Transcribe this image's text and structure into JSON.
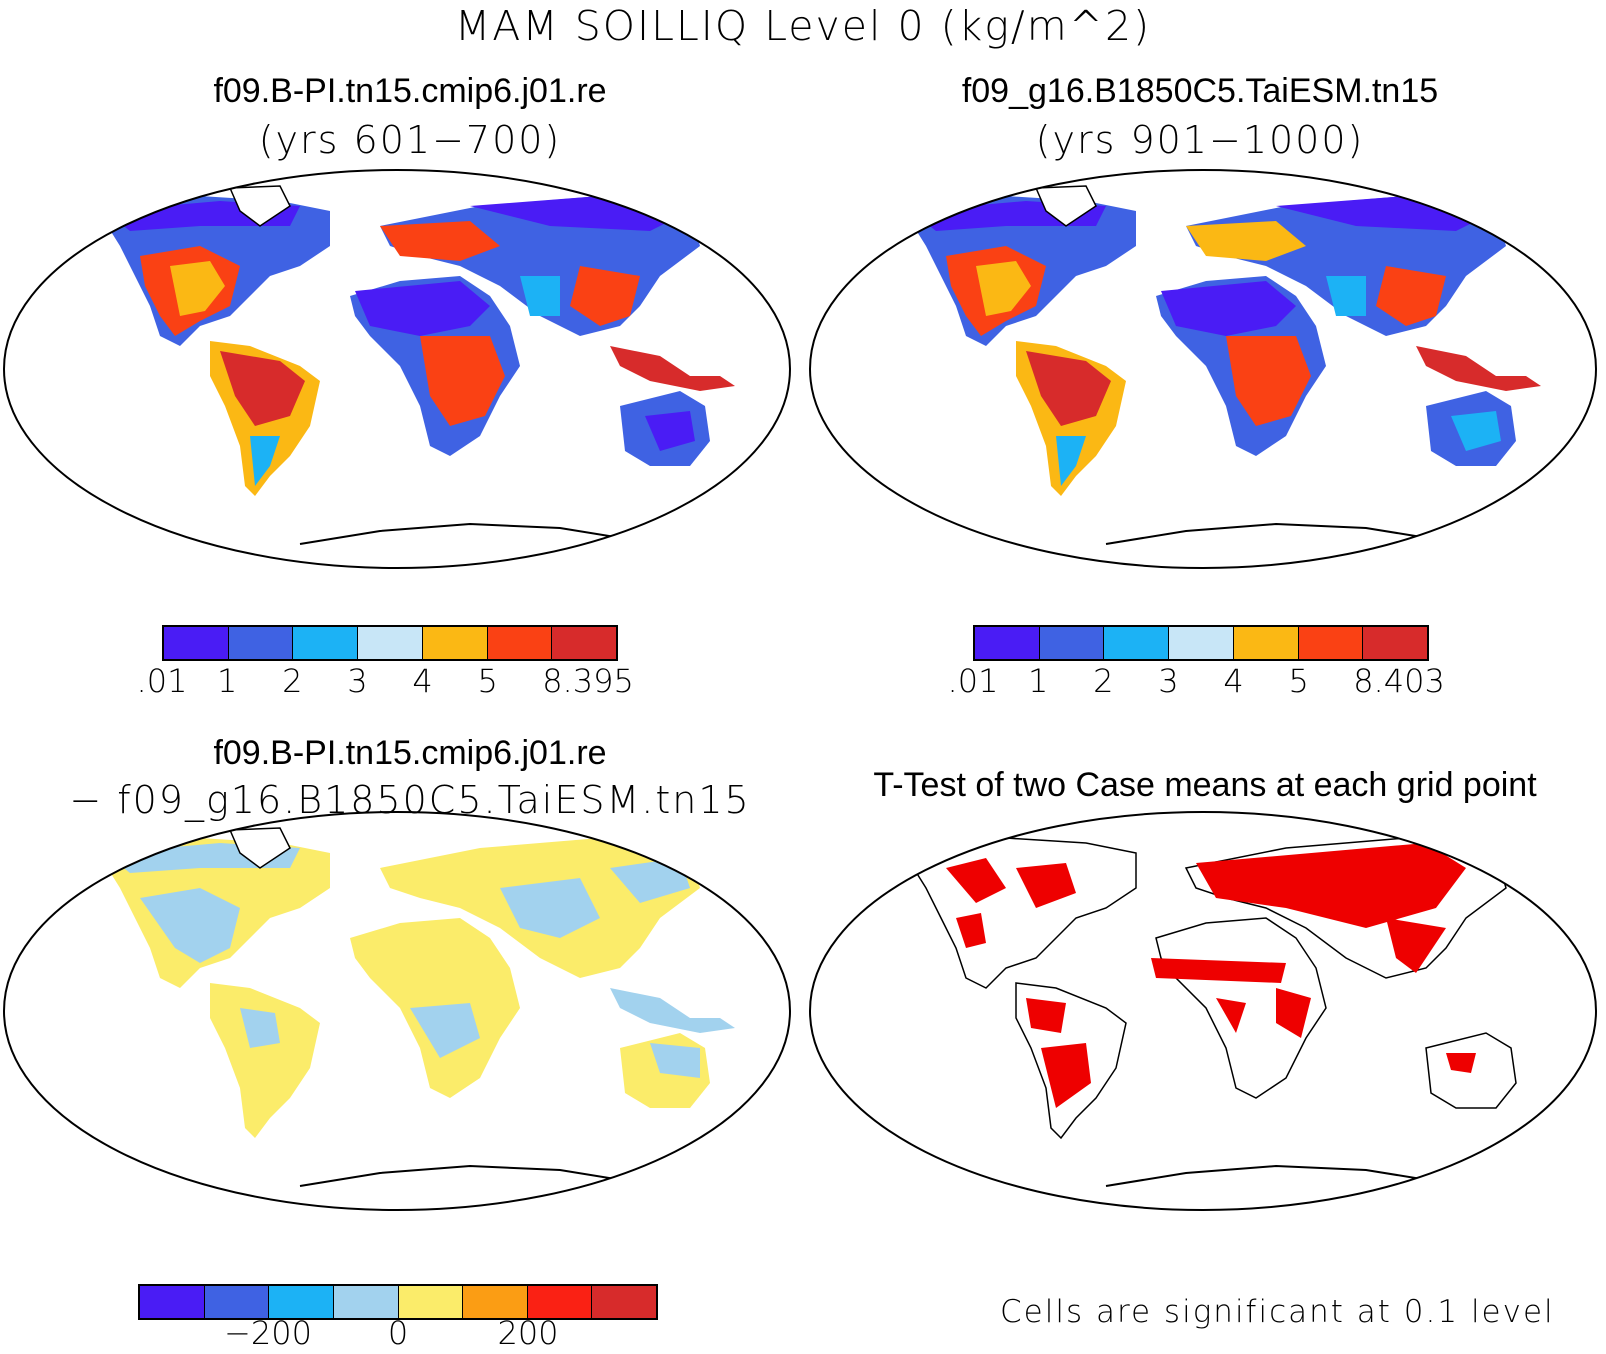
{
  "main_title": "MAM SOILLIQ Level 0 (kg/m^2)",
  "panels": [
    {
      "id": "top-left",
      "title": "f09.B-PI.tn15.cmip6.j01.re",
      "subtitle": "(yrs 601−700)"
    },
    {
      "id": "top-right",
      "title": "f09_g16.B1850C5.TaiESM.tn15",
      "subtitle": "(yrs 901−1000)"
    },
    {
      "id": "bottom-left",
      "title": "f09.B-PI.tn15.cmip6.j01.re",
      "subtitle": "− f09_g16.B1850C5.TaiESM.tn15"
    },
    {
      "id": "bottom-right",
      "title": "T-Test of two Case means at each grid point",
      "subtitle": ""
    }
  ],
  "colorbars": {
    "top_left": {
      "colors": [
        "#4a1cf5",
        "#3f62e3",
        "#1cb2f5",
        "#c8e6f7",
        "#fbb814",
        "#fa4114",
        "#d72b2b"
      ],
      "labels": [
        ".01",
        "1",
        "2",
        "3",
        "4",
        "5",
        "8.395"
      ]
    },
    "top_right": {
      "colors": [
        "#4a1cf5",
        "#3f62e3",
        "#1cb2f5",
        "#c8e6f7",
        "#fbb814",
        "#fa4114",
        "#d72b2b"
      ],
      "labels": [
        ".01",
        "1",
        "2",
        "3",
        "4",
        "5",
        "8.403"
      ]
    },
    "bottom_left": {
      "colors": [
        "#4a1cf5",
        "#3f62e3",
        "#1cb2f5",
        "#a2d2ee",
        "#fbec6a",
        "#fb9d14",
        "#fa2114",
        "#d72b2b"
      ],
      "labels": [
        "−200",
        "0",
        "200"
      ]
    }
  },
  "significance_note": "Cells are significant at 0.1 level",
  "map_colors": {
    "outline": "#000000",
    "ttest_fill": "#ee0000",
    "diff_fill_a": "#fbec6a",
    "diff_fill_b": "#a2d2ee"
  }
}
